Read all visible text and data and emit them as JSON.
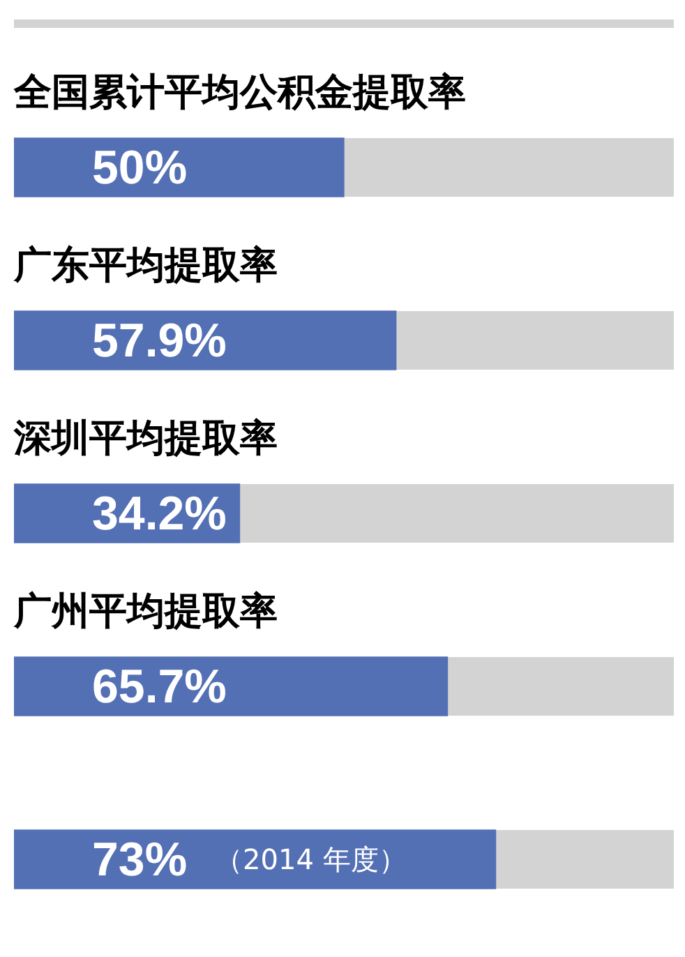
{
  "chart_data": {
    "type": "bar",
    "orientation": "horizontal",
    "categories": [
      "全国累计平均公积金提取率",
      "广东平均提取率",
      "深圳平均提取率",
      "广州平均提取率",
      null
    ],
    "values": [
      50,
      57.9,
      34.2,
      65.7,
      73
    ],
    "color": "#5470b5",
    "value_labels": [
      "50%",
      "57.9%",
      "34.2%",
      "65.7%",
      "73%"
    ],
    "xlim": [
      0,
      100
    ],
    "tick_labels": false,
    "legend": false,
    "annotations": [
      "（2014 年度）"
    ]
  }
}
